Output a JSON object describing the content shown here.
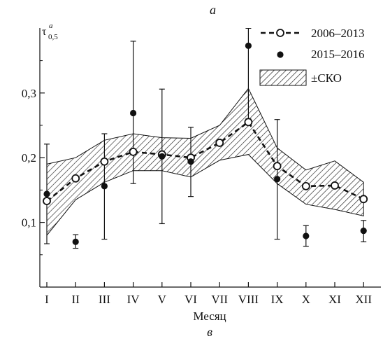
{
  "chart_data": {
    "type": "line",
    "panel_label_top": "a",
    "panel_label_bottom": "в",
    "xlabel": "Месяц",
    "ylabel": {
      "base": "τ",
      "sup": "a",
      "sub": "0,5"
    },
    "ylim": [
      0.0,
      0.4
    ],
    "yticks": [
      0.1,
      0.2,
      0.3
    ],
    "ytick_labels": [
      "0,1",
      "0,2",
      "0,3"
    ],
    "categories": [
      "I",
      "II",
      "III",
      "IV",
      "V",
      "VI",
      "VII",
      "VIII",
      "IX",
      "X",
      "XI",
      "XII"
    ],
    "legend": {
      "placement": "top-right",
      "entries": [
        "2006–2013",
        "2015–2016",
        "±СКО"
      ]
    },
    "series": [
      {
        "name": "2006–2013",
        "style": "dashed line with open circles",
        "values": [
          0.133,
          0.168,
          0.194,
          0.209,
          0.205,
          0.2,
          0.223,
          0.255,
          0.187,
          0.156,
          0.157,
          0.136
        ],
        "band_upper": [
          0.19,
          0.2,
          0.227,
          0.237,
          0.231,
          0.23,
          0.25,
          0.307,
          0.215,
          0.181,
          0.195,
          0.162
        ],
        "band_lower": [
          0.08,
          0.135,
          0.162,
          0.18,
          0.18,
          0.17,
          0.196,
          0.205,
          0.16,
          0.128,
          0.12,
          0.11
        ]
      },
      {
        "name": "2015–2016",
        "style": "filled circles with error bars",
        "values": [
          0.144,
          0.07,
          0.156,
          0.269,
          0.202,
          0.194,
          null,
          0.373,
          0.167,
          0.079,
          null,
          0.087
        ],
        "err_low": [
          0.067,
          0.06,
          0.074,
          0.16,
          0.098,
          0.14,
          null,
          0.26,
          0.074,
          0.063,
          null,
          0.07
        ],
        "err_high": [
          0.221,
          0.081,
          0.237,
          0.38,
          0.306,
          0.247,
          null,
          0.4,
          0.259,
          0.095,
          null,
          0.103
        ]
      }
    ]
  }
}
